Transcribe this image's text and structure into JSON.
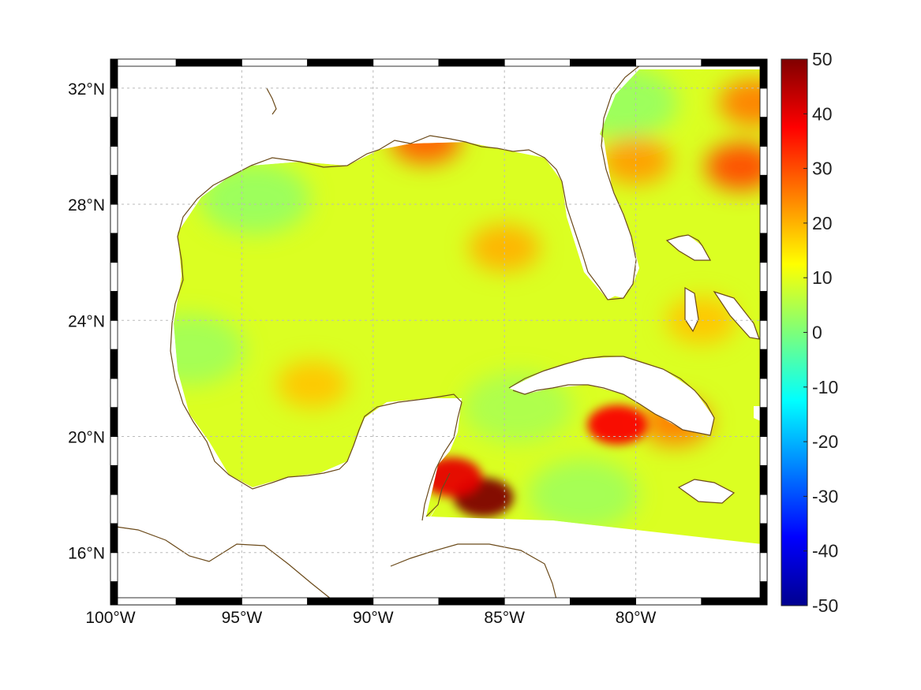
{
  "map": {
    "type": "geographic-scalar-field",
    "region": "Gulf of Mexico and western Caribbean",
    "lon_range": [
      -100,
      -75
    ],
    "lat_range": [
      14.2,
      33
    ],
    "gridlines": true,
    "lon_ticks": [
      {
        "value": -100,
        "label": "100°W"
      },
      {
        "value": -95,
        "label": "95°W"
      },
      {
        "value": -90,
        "label": "90°W"
      },
      {
        "value": -85,
        "label": "85°W"
      },
      {
        "value": -80,
        "label": "80°W"
      }
    ],
    "lat_ticks": [
      {
        "value": 16,
        "label": "16°N"
      },
      {
        "value": 20,
        "label": "20°N"
      },
      {
        "value": 24,
        "label": "24°N"
      },
      {
        "value": 28,
        "label": "28°N"
      },
      {
        "value": 32,
        "label": "32°N"
      }
    ],
    "coastline_color": "#6b4a1a",
    "frame_style": "alternating-black-white"
  },
  "colorbar": {
    "colormap": "jet",
    "range": [
      -50,
      50
    ],
    "ticks": [
      "50",
      "40",
      "30",
      "20",
      "10",
      "0",
      "-10",
      "-20",
      "-30",
      "-40",
      "-50"
    ]
  },
  "field": {
    "background_level": 9,
    "hotspots": [
      {
        "name": "caribbean-west-max",
        "lon": -85.8,
        "lat": 17.9,
        "value": 50
      },
      {
        "name": "caribbean-west-secondary",
        "lon": -87.0,
        "lat": 18.6,
        "value": 40
      },
      {
        "name": "cuba-south-spot",
        "lon": -80.7,
        "lat": 20.4,
        "value": 38
      },
      {
        "name": "cuba-east",
        "lon": -78.5,
        "lat": 20.5,
        "value": 25
      },
      {
        "name": "florida-atlantic",
        "lon": -80.0,
        "lat": 29.5,
        "value": 22
      },
      {
        "name": "atlantic-32n",
        "lon": -76.0,
        "lat": 29.3,
        "value": 30
      },
      {
        "name": "atlantic-northeast",
        "lon": -75.5,
        "lat": 31.5,
        "value": 25
      },
      {
        "name": "mobile-bay",
        "lon": -88.0,
        "lat": 30.2,
        "value": 28
      },
      {
        "name": "central-gulf",
        "lon": -85.0,
        "lat": 26.5,
        "value": 20
      },
      {
        "name": "bay-of-campeche-band",
        "lon": -92.3,
        "lat": 21.8,
        "value": 18
      },
      {
        "name": "bahamas",
        "lon": -77.5,
        "lat": 24.0,
        "value": 18
      }
    ],
    "cool_zones": [
      {
        "name": "gulf-northwest",
        "lon": -94.5,
        "lat": 28.2,
        "value": 2
      },
      {
        "name": "gulf-west-coast",
        "lon": -97.0,
        "lat": 23.0,
        "value": 3
      },
      {
        "name": "florida-east-shelf",
        "lon": -80.5,
        "lat": 31.5,
        "value": 2
      },
      {
        "name": "yucatan-channel",
        "lon": -84.5,
        "lat": 21.0,
        "value": 4
      },
      {
        "name": "caribbean-central",
        "lon": -82.0,
        "lat": 18.0,
        "value": 3
      }
    ]
  }
}
